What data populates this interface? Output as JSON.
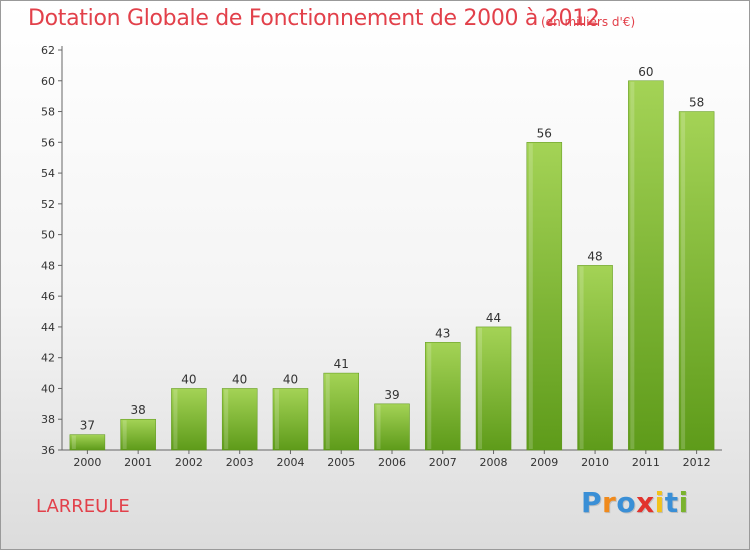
{
  "chart_data": {
    "type": "bar",
    "title": "Dotation Globale de Fonctionnement de 2000 à 2012",
    "subtitle": "(en milliers d'€)",
    "categories": [
      "2000",
      "2001",
      "2002",
      "2003",
      "2004",
      "2005",
      "2006",
      "2007",
      "2008",
      "2009",
      "2010",
      "2011",
      "2012"
    ],
    "values": [
      37,
      38,
      40,
      40,
      40,
      41,
      39,
      43,
      44,
      56,
      48,
      60,
      58
    ],
    "ylim": [
      36,
      62
    ],
    "yticks": [
      36,
      38,
      40,
      42,
      44,
      46,
      48,
      50,
      52,
      54,
      56,
      58,
      60,
      62
    ],
    "grid": false,
    "bar_color": "#7ab32e",
    "text_color": "#e2404a"
  },
  "footer": {
    "commune": "LARREULE",
    "brand": "Proxiti"
  },
  "brand_letters": [
    {
      "ch": "P",
      "color": "#3a8fd6"
    },
    {
      "ch": "r",
      "color": "#f08a1c"
    },
    {
      "ch": "o",
      "color": "#3a8fd6"
    },
    {
      "ch": "x",
      "color": "#e2342e"
    },
    {
      "ch": "i",
      "color": "#f2c21b"
    },
    {
      "ch": "t",
      "color": "#3a8fd6"
    },
    {
      "ch": "i",
      "color": "#7ab32e"
    }
  ]
}
